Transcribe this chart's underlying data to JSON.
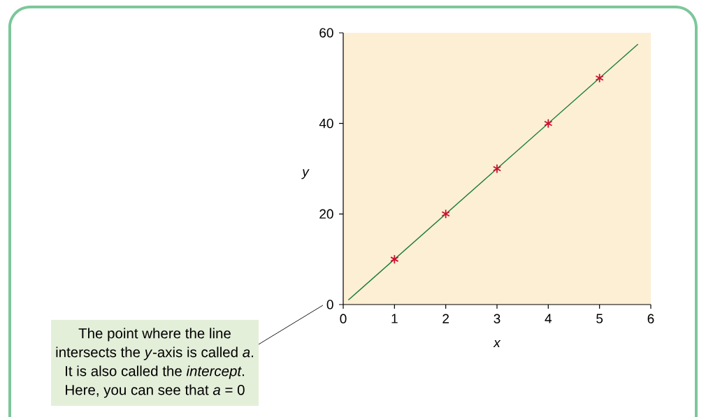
{
  "chart_data": {
    "type": "scatter",
    "xlabel": "x",
    "ylabel": "y",
    "xlim": [
      0,
      6
    ],
    "ylim": [
      0,
      60
    ],
    "xticks": [
      0,
      1,
      2,
      3,
      4,
      5,
      6
    ],
    "yticks": [
      0,
      20,
      40,
      60
    ],
    "series": [
      {
        "type": "line",
        "color": "#1b7a3c",
        "line_style": "solid",
        "x": [
          0.1,
          5.75
        ],
        "values": [
          1,
          57.5
        ]
      },
      {
        "color": "#c8102e",
        "marker": "cross",
        "x": [
          1,
          2,
          3,
          4,
          5
        ],
        "values": [
          10,
          20,
          30,
          40,
          50
        ]
      }
    ],
    "annotations": [
      "The point where the line intersects the *y*-axis is called *a*. It is also called the *intercept*. Here, you can see that *a* = 0"
    ]
  }
}
